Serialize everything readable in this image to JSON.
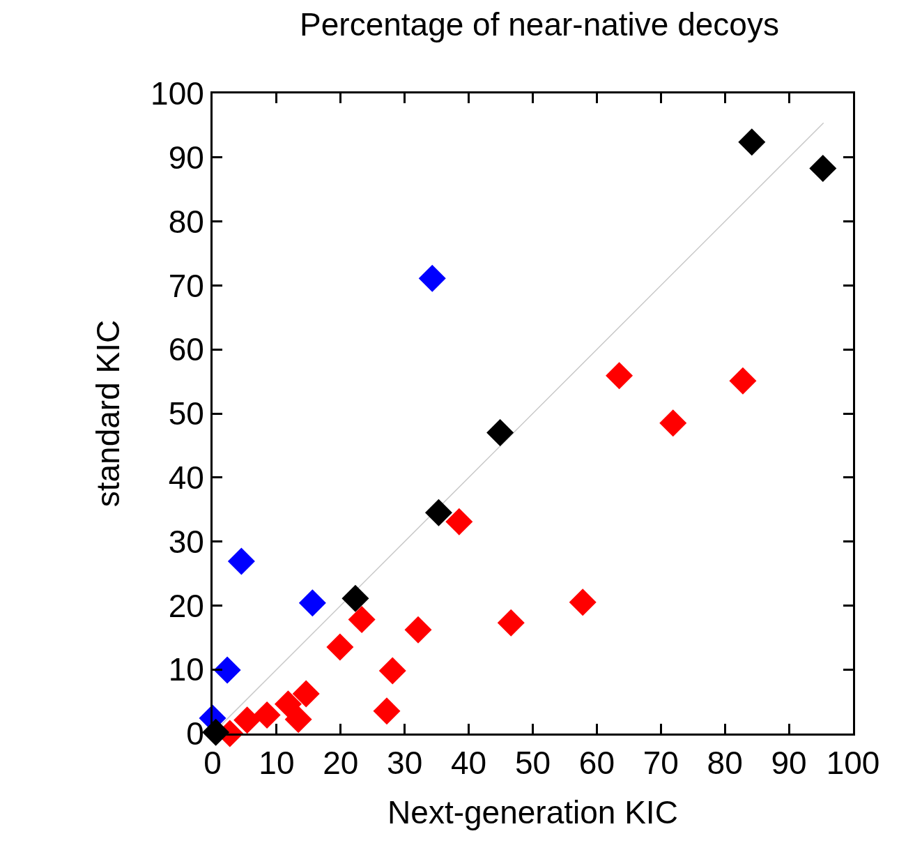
{
  "chart_data": {
    "type": "scatter",
    "title": "Percentage of near-native decoys",
    "xlabel": "Next-generation KIC",
    "ylabel": "standard KIC",
    "xlim": [
      0,
      100
    ],
    "ylim": [
      0,
      100
    ],
    "xticks": [
      0,
      10,
      20,
      30,
      40,
      50,
      60,
      70,
      80,
      90,
      100
    ],
    "yticks": [
      0,
      10,
      20,
      30,
      40,
      50,
      60,
      70,
      80,
      90,
      100
    ],
    "marker": "diamond",
    "series": [
      {
        "type": "line",
        "color": "#c8c8c8",
        "marker": "none",
        "line_style": "solid",
        "x": [
          0,
          95.4
        ],
        "values": [
          0,
          95.4
        ]
      },
      {
        "color": "#ff0000",
        "x": [
          63.5,
          82.8,
          71.9,
          38.5,
          57.8,
          46.6,
          23.3,
          32.1,
          19.9,
          28.1,
          27.2,
          14.6,
          13.4,
          11.8,
          8.5,
          5.4,
          2.7
        ],
        "values": [
          55.9,
          55.1,
          48.5,
          33.1,
          20.5,
          17.3,
          17.8,
          16.2,
          13.5,
          9.8,
          3.5,
          6.2,
          2.2,
          4.6,
          2.9,
          2.1,
          0
        ]
      },
      {
        "color": "#0000ff",
        "x": [
          34.3,
          4.5,
          15.6,
          2.3,
          0
        ],
        "values": [
          71.1,
          26.9,
          20.4,
          9.9,
          2.4
        ]
      },
      {
        "color": "#000000",
        "x": [
          84.2,
          95.3,
          44.9,
          35.3,
          22.3,
          0.5
        ],
        "values": [
          92.4,
          88.3,
          47.0,
          34.5,
          21.1,
          0.2
        ]
      }
    ]
  }
}
